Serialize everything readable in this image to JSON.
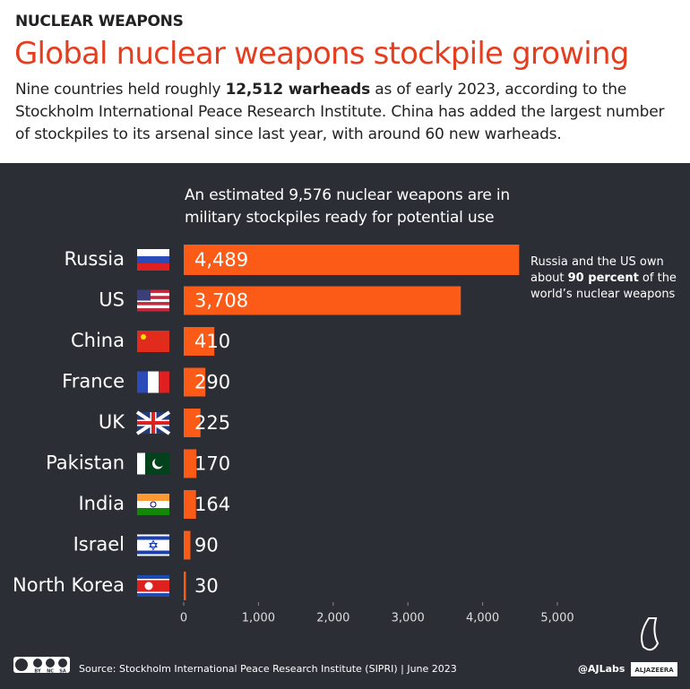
{
  "kicker": "NUCLEAR WEAPONS",
  "chart_data": {
    "type": "bar",
    "orientation": "horizontal",
    "title": "Global nuclear weapons stockpile growing",
    "subtitle": [
      {
        "text": "Nine countries held roughly ",
        "bold": false
      },
      {
        "text": "12,512 warheads",
        "bold": true
      },
      {
        "text": " as of early 2023, according to the Stockholm International Peace Research Institute. China has added the largest number of stockpiles to its arsenal since last year, with around 60 new warheads.",
        "bold": false
      }
    ],
    "chart_subtitle": "An estimated 9,576 nuclear weapons are in military stockpiles ready for potential use",
    "annotation": [
      {
        "text": "Russia and the US own about ",
        "bold": false
      },
      {
        "text": "90 percent",
        "bold": true
      },
      {
        "text": " of the world’s nuclear weapons",
        "bold": false
      }
    ],
    "categories": [
      "Russia",
      "US",
      "China",
      "France",
      "UK",
      "Pakistan",
      "India",
      "Israel",
      "North Korea"
    ],
    "values": [
      4489,
      3708,
      410,
      290,
      225,
      170,
      164,
      90,
      30
    ],
    "value_labels": [
      "4,489",
      "3,708",
      "410",
      "290",
      "225",
      "170",
      "164",
      "90",
      "30"
    ],
    "color": "#fb5a17",
    "xlim": [
      0,
      5000
    ],
    "xticks": [
      0,
      {
        "value": 1000,
        "label": "1,000"
      },
      {
        "value": 2000,
        "label": "2,000"
      },
      {
        "value": 3000,
        "label": "3,000"
      },
      {
        "value": 4000,
        "label": "4,000"
      },
      {
        "value": 5000,
        "label": "5,000"
      }
    ],
    "grid": false
  },
  "footer": {
    "license": [
      "BY",
      "NC",
      "SA"
    ],
    "source": "Source: Stockholm International Peace Research Institute (SIPRI) | June 2023",
    "handle": "@AJLabs",
    "logo": "ALJAZEERA"
  }
}
